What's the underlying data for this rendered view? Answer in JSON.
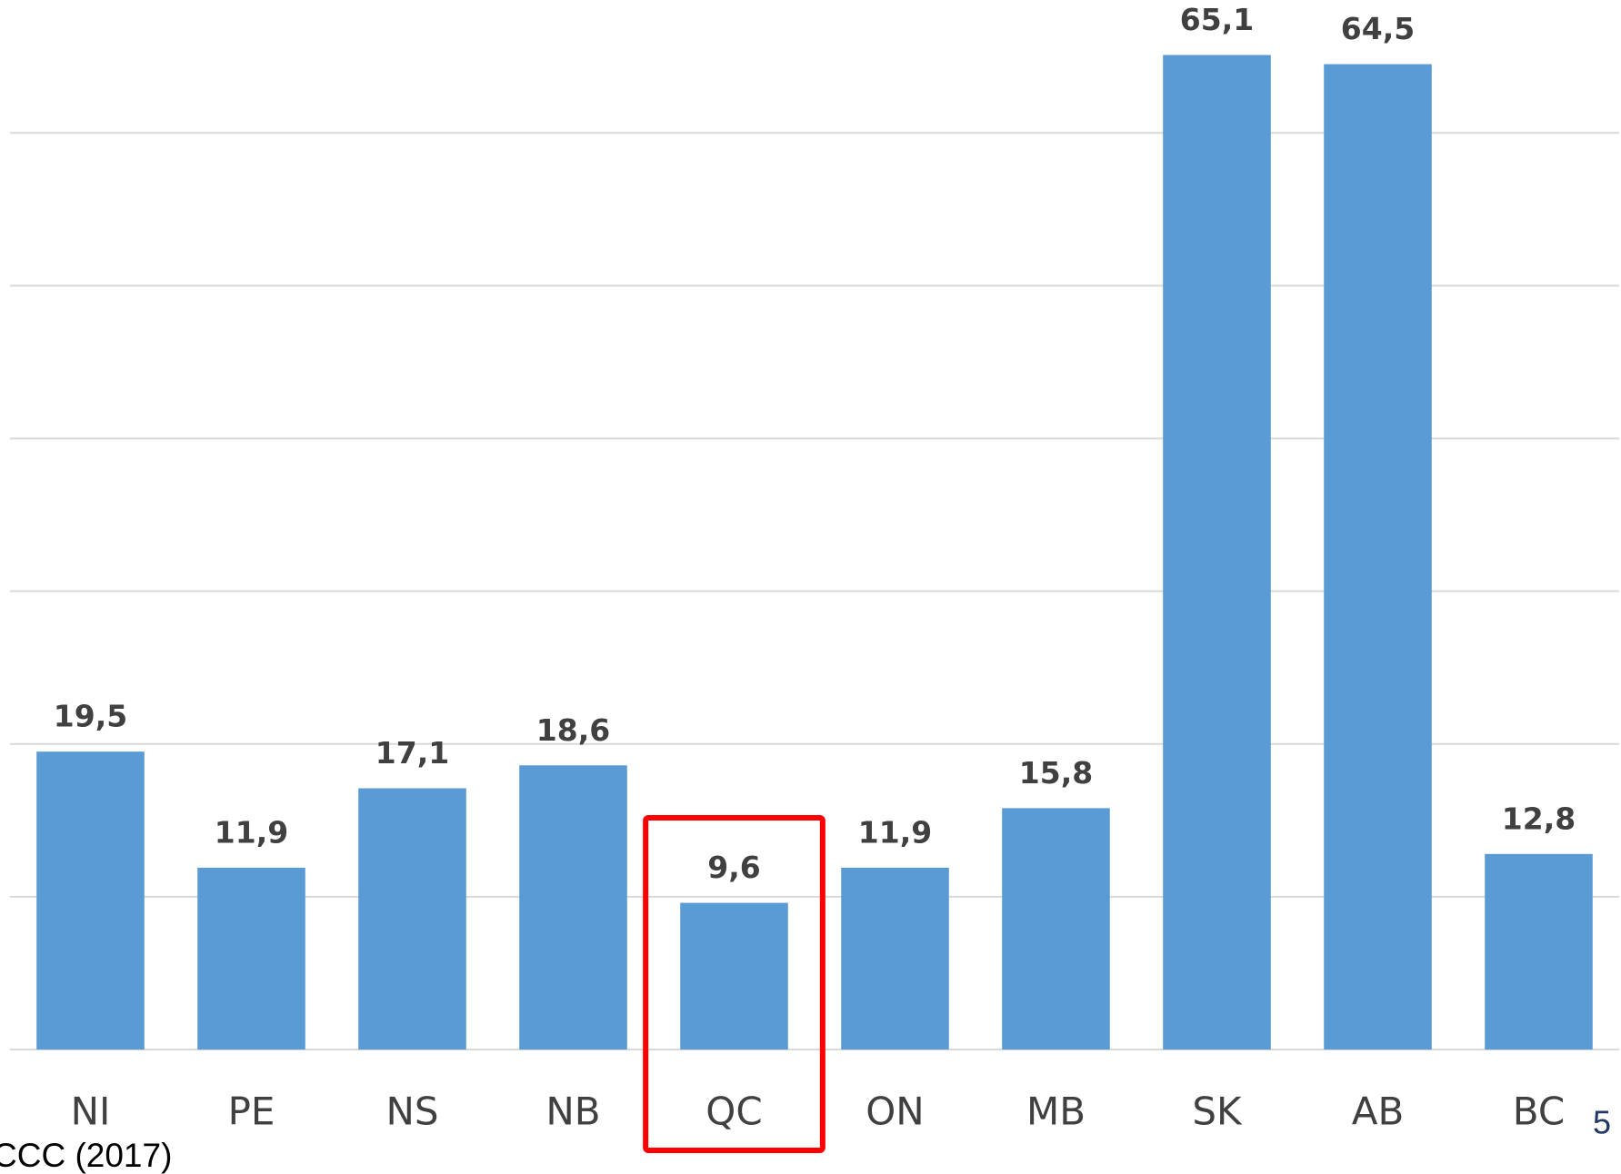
{
  "chart_data": {
    "type": "bar",
    "categories": [
      "NI",
      "PE",
      "NS",
      "NB",
      "QC",
      "ON",
      "MB",
      "SK",
      "AB",
      "BC"
    ],
    "values": [
      19.5,
      11.9,
      17.1,
      18.6,
      9.6,
      11.9,
      15.8,
      65.1,
      64.5,
      12.8
    ],
    "value_labels": [
      "19,5",
      "11,9",
      "17,1",
      "18,6",
      "9,6",
      "11,9",
      "15,8",
      "65,1",
      "64,5",
      "12,8"
    ],
    "color": "#5b9bd5",
    "ylim": [
      0,
      68.7
    ],
    "yticks": [
      0,
      10,
      20,
      30,
      40,
      50,
      60
    ],
    "grid": true,
    "highlight": "QC",
    "highlight_color": "#ff0000",
    "source": "CCC (2017)",
    "page_number": "5"
  }
}
